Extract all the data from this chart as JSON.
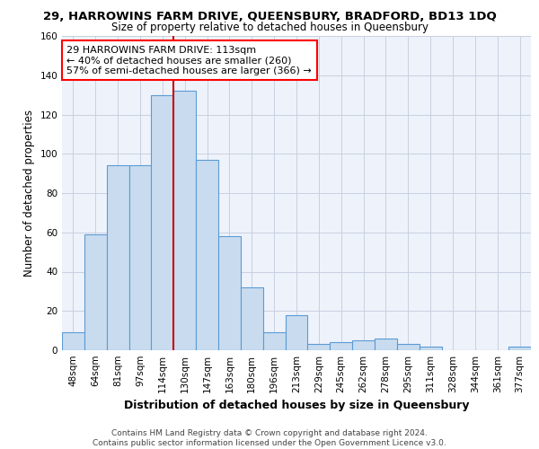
{
  "title": "29, HARROWINS FARM DRIVE, QUEENSBURY, BRADFORD, BD13 1DQ",
  "subtitle": "Size of property relative to detached houses in Queensbury",
  "xlabel": "Distribution of detached houses by size in Queensbury",
  "ylabel": "Number of detached properties",
  "categories": [
    "48sqm",
    "64sqm",
    "81sqm",
    "97sqm",
    "114sqm",
    "130sqm",
    "147sqm",
    "163sqm",
    "180sqm",
    "196sqm",
    "213sqm",
    "229sqm",
    "245sqm",
    "262sqm",
    "278sqm",
    "295sqm",
    "311sqm",
    "328sqm",
    "344sqm",
    "361sqm",
    "377sqm"
  ],
  "values": [
    9,
    59,
    94,
    94,
    130,
    132,
    97,
    58,
    32,
    9,
    18,
    3,
    4,
    5,
    6,
    3,
    2,
    0,
    0,
    0,
    2
  ],
  "bar_color": "#c9dcef",
  "bar_edge_color": "#5b9bd5",
  "red_line_x": 4.5,
  "annotation_text": "29 HARROWINS FARM DRIVE: 113sqm\n← 40% of detached houses are smaller (260)\n57% of semi-detached houses are larger (366) →",
  "annotation_box_color": "white",
  "annotation_box_edge": "red",
  "ylim": [
    0,
    160
  ],
  "yticks": [
    0,
    20,
    40,
    60,
    80,
    100,
    120,
    140,
    160
  ],
  "grid_color": "#c8d0e0",
  "background_color": "#eef2fa",
  "footer": "Contains HM Land Registry data © Crown copyright and database right 2024.\nContains public sector information licensed under the Open Government Licence v3.0.",
  "title_fontsize": 9.5,
  "subtitle_fontsize": 8.5,
  "xlabel_fontsize": 9,
  "ylabel_fontsize": 8.5,
  "tick_fontsize": 7.5,
  "footer_fontsize": 6.5,
  "annotation_fontsize": 8
}
